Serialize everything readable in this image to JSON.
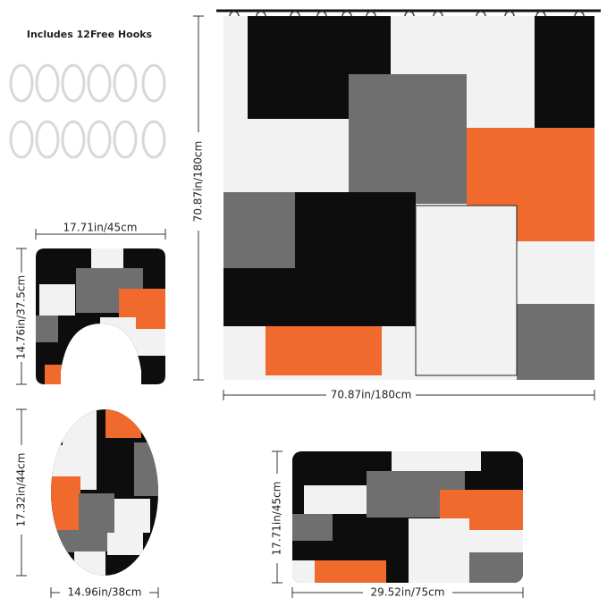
{
  "header": {
    "title": "Includes 12Free Hooks"
  },
  "dimensions": {
    "curtain": {
      "height": "70.87in/180cm",
      "width": "70.87in/180cm"
    },
    "contour_rug": {
      "width": "17.71in/45cm",
      "height": "14.76in/37.5cm"
    },
    "lid_cover": {
      "height": "17.32in/44cm",
      "width": "14.96in/38cm"
    },
    "bath_mat": {
      "height": "17.71in/45cm",
      "width": "29.52in/75cm"
    }
  }
}
